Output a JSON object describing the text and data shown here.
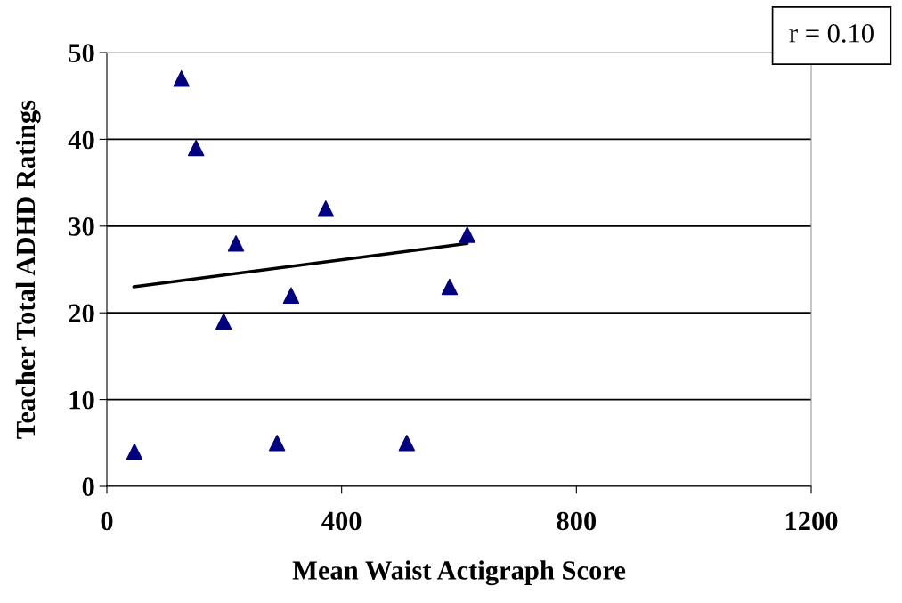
{
  "chart_data": {
    "type": "scatter",
    "xlabel": "Mean Waist Actigraph Score",
    "ylabel": "Teacher Total ADHD Ratings",
    "series": [
      {
        "type": "scatter",
        "color": "#000080",
        "marker": "triangle",
        "x": [
          47,
          127,
          152,
          199,
          220,
          290,
          314,
          373,
          511,
          584,
          614
        ],
        "values": [
          4,
          47,
          39,
          19,
          28,
          5,
          22,
          32,
          5,
          23,
          29
        ]
      },
      {
        "type": "line",
        "color": "#000000",
        "marker": "none",
        "line_style": "solid",
        "x": [
          46,
          614
        ],
        "values": [
          23,
          28
        ]
      }
    ],
    "xlim": [
      0,
      1200
    ],
    "xticks": [
      0,
      400,
      800,
      1200
    ],
    "ylim": [
      0,
      50
    ],
    "yticks": [
      0,
      10,
      20,
      30,
      40,
      50
    ],
    "grid": "y",
    "legend": false,
    "annotations": [
      "r = 0.10"
    ]
  }
}
